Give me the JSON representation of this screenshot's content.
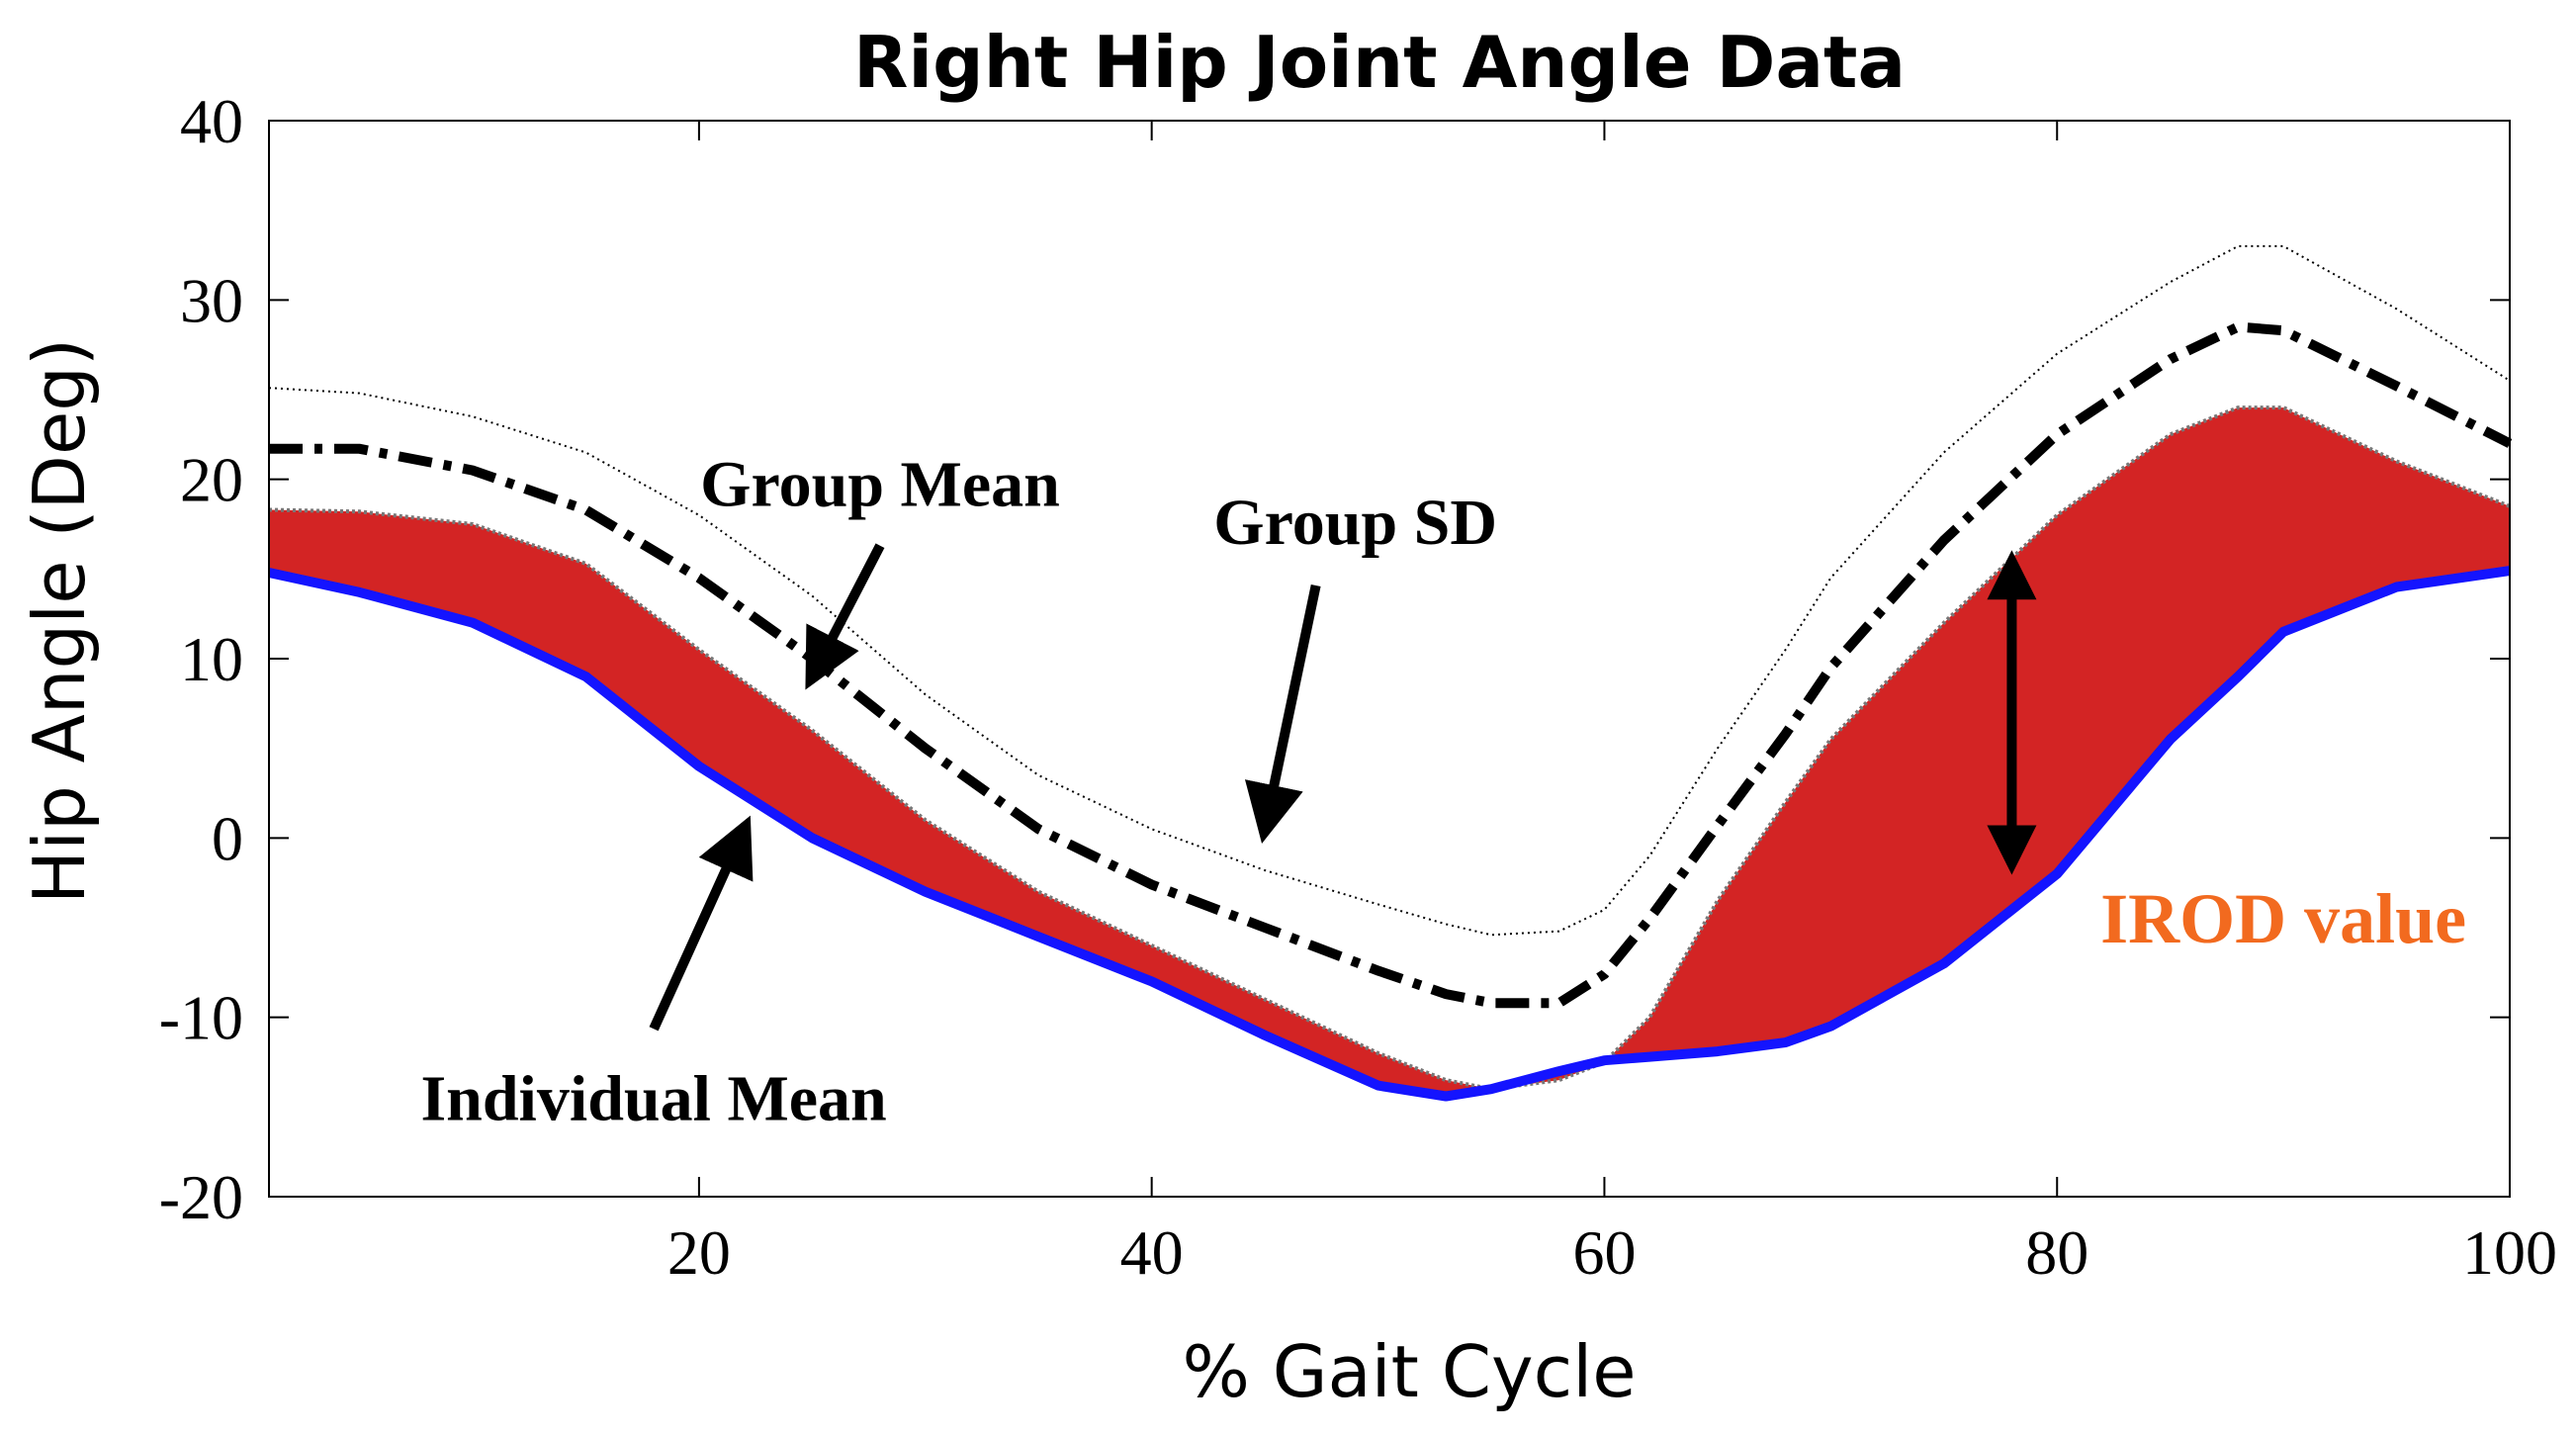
{
  "chart_data": {
    "type": "line",
    "title": "Right Hip Joint Angle Data",
    "xlabel": "% Gait Cycle",
    "ylabel": "Hip Angle (Deg)",
    "xlim": [
      1,
      100
    ],
    "ylim": [
      -20,
      40
    ],
    "xticks": [
      20,
      40,
      60,
      80,
      100
    ],
    "yticks": [
      -20,
      -10,
      0,
      10,
      20,
      30,
      40
    ],
    "x": [
      1,
      5,
      10,
      15,
      20,
      25,
      30,
      35,
      40,
      45,
      50,
      53,
      55,
      58,
      60,
      62,
      65,
      68,
      70,
      75,
      80,
      85,
      88,
      90,
      95,
      100
    ],
    "series": [
      {
        "name": "Group Mean",
        "style": "dash-dot",
        "color": "#000000",
        "values": [
          21.7,
          21.7,
          20.5,
          18.3,
          14.5,
          10.0,
          5.0,
          0.5,
          -2.6,
          -5.0,
          -7.4,
          -8.7,
          -9.2,
          -9.2,
          -7.6,
          -4.5,
          0.7,
          5.8,
          9.5,
          16.6,
          22.5,
          26.7,
          28.5,
          28.3,
          25.2,
          22.0
        ]
      },
      {
        "name": "Group SD Upper",
        "style": "dotted",
        "color": "#000000",
        "values": [
          25.1,
          24.8,
          23.5,
          21.5,
          18.0,
          13.5,
          8.0,
          3.5,
          0.5,
          -1.8,
          -3.7,
          -4.8,
          -5.4,
          -5.2,
          -4.0,
          -1.0,
          5.0,
          10.5,
          14.5,
          21.5,
          27.0,
          31.0,
          33.0,
          33.0,
          29.5,
          25.5
        ]
      },
      {
        "name": "Group SD Lower",
        "style": "dotted",
        "color": "#000000",
        "values": [
          18.3,
          18.2,
          17.5,
          15.3,
          10.5,
          6.0,
          1.0,
          -3.0,
          -6.0,
          -9.0,
          -12.0,
          -13.5,
          -14.0,
          -13.5,
          -12.5,
          -10.0,
          -3.5,
          2.0,
          5.5,
          12.0,
          18.0,
          22.5,
          24.0,
          24.0,
          21.0,
          18.5
        ]
      },
      {
        "name": "Individual Mean",
        "style": "solid",
        "color": "#1414ff",
        "values": [
          14.8,
          13.7,
          12.0,
          9.0,
          4.0,
          0.0,
          -3.0,
          -5.5,
          -8.0,
          -11.0,
          -13.8,
          -14.4,
          -14.0,
          -13.0,
          -12.4,
          -12.2,
          -11.9,
          -11.4,
          -10.5,
          -7.0,
          -2.0,
          5.5,
          9.0,
          11.5,
          14.0,
          14.9
        ]
      }
    ],
    "shaded_region": {
      "between": [
        "Individual Mean",
        "Group SD Lower"
      ],
      "color": "#d32424"
    },
    "annotations": [
      {
        "text": "Group Mean",
        "x": 28,
        "y": 19.5,
        "arrow_to": [
          25,
          9.0
        ]
      },
      {
        "text": "Group SD",
        "x": 49,
        "y": 17.5,
        "arrow_to": [
          45,
          0.5
        ]
      },
      {
        "text": "Individual Mean",
        "x": 18,
        "y": -14.5,
        "arrow_to": [
          22,
          0.5
        ]
      },
      {
        "text": "IROD value",
        "x": 90,
        "y": -4.5,
        "color": "#f26a1f"
      }
    ],
    "irod_arrow": {
      "x": 78,
      "y_from": -1.5,
      "y_to": 15.5
    },
    "grid": false,
    "legend": "none"
  }
}
